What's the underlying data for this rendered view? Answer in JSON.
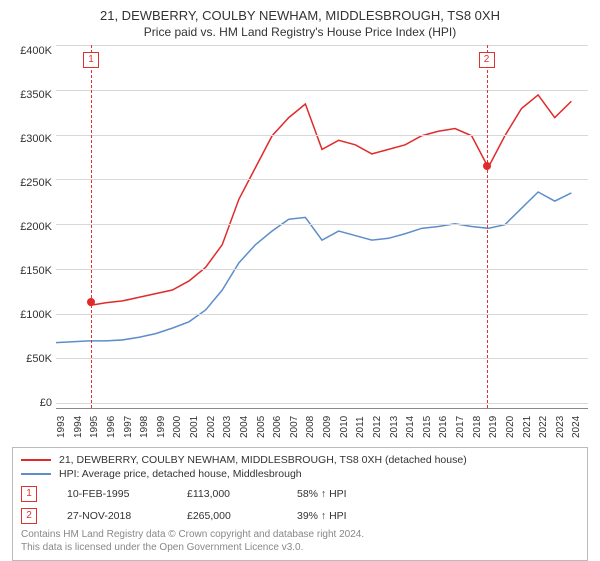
{
  "title": {
    "line1": "21, DEWBERRY, COULBY NEWHAM, MIDDLESBROUGH, TS8 0XH",
    "line2": "Price paid vs. HM Land Registry's House Price Index (HPI)"
  },
  "chart": {
    "type": "line",
    "y_axis": {
      "ticks": [
        "£400K",
        "£350K",
        "£300K",
        "£250K",
        "£200K",
        "£150K",
        "£100K",
        "£50K",
        "£0"
      ],
      "min": 0,
      "max": 400,
      "grid_color": "#d8d8d8"
    },
    "x_axis": {
      "ticks": [
        "1993",
        "1994",
        "1995",
        "1996",
        "1997",
        "1998",
        "1999",
        "2000",
        "2001",
        "2002",
        "2003",
        "2004",
        "2005",
        "2006",
        "2007",
        "2008",
        "2009",
        "2010",
        "2011",
        "2012",
        "2013",
        "2014",
        "2015",
        "2016",
        "2017",
        "2018",
        "2019",
        "2020",
        "2021",
        "2022",
        "2023",
        "2024"
      ],
      "min": 1993,
      "max": 2025
    },
    "series": [
      {
        "name": "property",
        "color": "#e02b2b",
        "points": [
          [
            1995,
            113
          ],
          [
            1996,
            116
          ],
          [
            1997,
            118
          ],
          [
            1998,
            122
          ],
          [
            1999,
            126
          ],
          [
            2000,
            130
          ],
          [
            2001,
            140
          ],
          [
            2002,
            155
          ],
          [
            2003,
            180
          ],
          [
            2004,
            230
          ],
          [
            2005,
            265
          ],
          [
            2006,
            300
          ],
          [
            2007,
            320
          ],
          [
            2008,
            335
          ],
          [
            2009,
            285
          ],
          [
            2010,
            295
          ],
          [
            2011,
            290
          ],
          [
            2012,
            280
          ],
          [
            2013,
            285
          ],
          [
            2014,
            290
          ],
          [
            2015,
            300
          ],
          [
            2016,
            305
          ],
          [
            2017,
            308
          ],
          [
            2018,
            300
          ],
          [
            2019,
            265
          ],
          [
            2020,
            300
          ],
          [
            2021,
            330
          ],
          [
            2022,
            345
          ],
          [
            2023,
            320
          ],
          [
            2024,
            338
          ]
        ]
      },
      {
        "name": "hpi",
        "color": "#5d8ec9",
        "points": [
          [
            1993,
            72
          ],
          [
            1994,
            73
          ],
          [
            1995,
            74
          ],
          [
            1996,
            74
          ],
          [
            1997,
            75
          ],
          [
            1998,
            78
          ],
          [
            1999,
            82
          ],
          [
            2000,
            88
          ],
          [
            2001,
            95
          ],
          [
            2002,
            108
          ],
          [
            2003,
            130
          ],
          [
            2004,
            160
          ],
          [
            2005,
            180
          ],
          [
            2006,
            195
          ],
          [
            2007,
            208
          ],
          [
            2008,
            210
          ],
          [
            2009,
            185
          ],
          [
            2010,
            195
          ],
          [
            2011,
            190
          ],
          [
            2012,
            185
          ],
          [
            2013,
            187
          ],
          [
            2014,
            192
          ],
          [
            2015,
            198
          ],
          [
            2016,
            200
          ],
          [
            2017,
            203
          ],
          [
            2018,
            200
          ],
          [
            2019,
            198
          ],
          [
            2020,
            202
          ],
          [
            2021,
            220
          ],
          [
            2022,
            238
          ],
          [
            2023,
            228
          ],
          [
            2024,
            237
          ]
        ]
      }
    ],
    "markers": [
      {
        "id": "1",
        "year": 1995.11,
        "value": 113,
        "badge_top": 15
      },
      {
        "id": "2",
        "year": 2018.9,
        "value": 265,
        "badge_top": 15
      }
    ]
  },
  "legend": {
    "series1": {
      "color": "#e02b2b",
      "label": "21, DEWBERRY, COULBY NEWHAM, MIDDLESBROUGH, TS8 0XH (detached house)"
    },
    "series2": {
      "color": "#5d8ec9",
      "label": "HPI: Average price, detached house, Middlesbrough"
    }
  },
  "transactions": [
    {
      "badge": "1",
      "date": "10-FEB-1995",
      "price": "£113,000",
      "delta": "58% ↑ HPI"
    },
    {
      "badge": "2",
      "date": "27-NOV-2018",
      "price": "£265,000",
      "delta": "39% ↑ HPI"
    }
  ],
  "footer": {
    "line1": "Contains HM Land Registry data © Crown copyright and database right 2024.",
    "line2": "This data is licensed under the Open Government Licence v3.0."
  }
}
